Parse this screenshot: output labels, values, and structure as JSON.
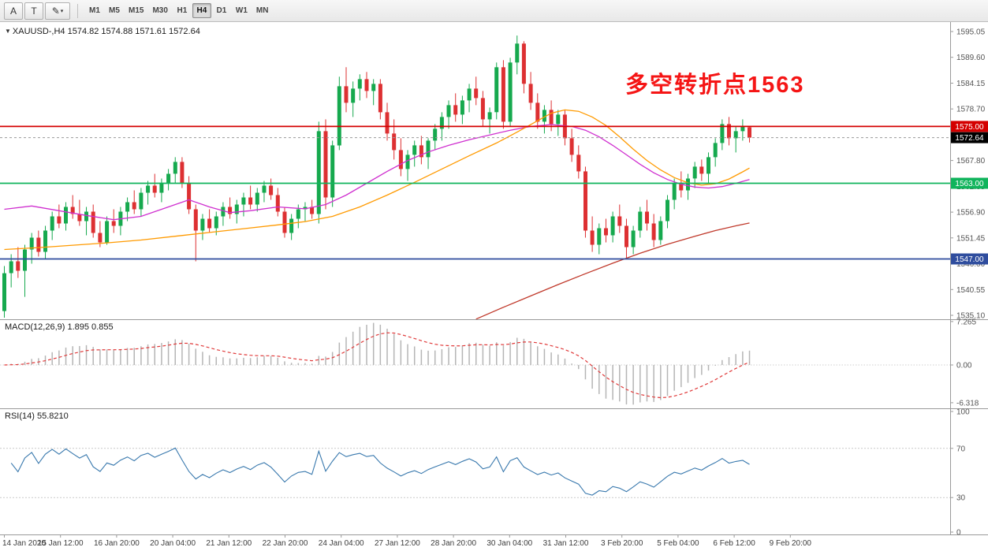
{
  "toolbar": {
    "tool_buttons": [
      {
        "label": "A"
      },
      {
        "label": "T"
      },
      {
        "label": "✎",
        "dropdown": "▾"
      }
    ],
    "timeframes": [
      "M1",
      "M5",
      "M15",
      "M30",
      "H1",
      "H4",
      "D1",
      "W1",
      "MN"
    ],
    "active_timeframe": "H4"
  },
  "chart": {
    "title_marker": "▼",
    "title": "XAUUSD-,H4 1574.82 1574.88 1571.61 1572.64",
    "annotation": "多空转折点1563",
    "current_price_label": "1572.64",
    "price_ticks": [
      "1595.05",
      "1589.60",
      "1584.15",
      "1578.70",
      "1567.80",
      "1562.35",
      "1556.90",
      "1551.45",
      "1546.00",
      "1540.55",
      "1535.10"
    ],
    "macd_title": "MACD(12,26,9) 1.895 0.855",
    "macd_ticks": [
      "7.265",
      "0.00",
      "-6.318"
    ],
    "rsi_title": "RSI(14) 55.8210",
    "rsi_ticks": [
      "100",
      "70",
      "30",
      "0"
    ]
  },
  "colors": {
    "bull": "#16a94e",
    "bear": "#dd3032",
    "macd_hist": "#b5b5b5",
    "macd_signal": "#e03a3a",
    "rsi_line": "#3878ad",
    "separator": "#9a9a9a",
    "axis_text": "#555555",
    "current_price_line": "#999999"
  },
  "chart_data": {
    "type": "candlestick",
    "symbol": "XAUUSD-",
    "timeframe": "H4",
    "last_bar": {
      "open": 1574.82,
      "high": 1574.88,
      "low": 1571.61,
      "close": 1572.64
    },
    "y_range": [
      1535.1,
      1595.05
    ],
    "x_labels": [
      "14 Jan 2020",
      "15 Jan 12:00",
      "16 Jan 20:00",
      "20 Jan 04:00",
      "21 Jan 12:00",
      "22 Jan 20:00",
      "24 Jan 04:00",
      "27 Jan 12:00",
      "28 Jan 20:00",
      "30 Jan 04:00",
      "31 Jan 12:00",
      "3 Feb 20:00",
      "5 Feb 04:00",
      "6 Feb 12:00",
      "9 Feb 20:00"
    ],
    "current_price": 1572.64,
    "levels": [
      {
        "price": 1575.0,
        "label": "1575.00",
        "color": "#d40000"
      },
      {
        "price": 1563.0,
        "label": "1563.00",
        "color": "#10b45c"
      },
      {
        "price": 1547.0,
        "label": "1547.00",
        "color": "#2f4d9e"
      }
    ],
    "candles": [
      [
        1536.0,
        1545.5,
        1534.6,
        1544.0
      ],
      [
        1544.0,
        1548.0,
        1541.0,
        1546.5
      ],
      [
        1546.5,
        1549.5,
        1543.0,
        1544.5
      ],
      [
        1544.5,
        1550.0,
        1539.0,
        1549.0
      ],
      [
        1549.0,
        1552.5,
        1546.0,
        1551.5
      ],
      [
        1551.5,
        1553.0,
        1547.5,
        1548.5
      ],
      [
        1548.5,
        1554.0,
        1547.0,
        1553.0
      ],
      [
        1553.0,
        1557.0,
        1551.0,
        1556.0
      ],
      [
        1556.0,
        1558.5,
        1553.5,
        1554.5
      ],
      [
        1554.5,
        1559.0,
        1553.0,
        1558.0
      ],
      [
        1558.0,
        1560.5,
        1555.5,
        1556.5
      ],
      [
        1556.5,
        1559.5,
        1554.0,
        1555.0
      ],
      [
        1555.0,
        1558.0,
        1552.0,
        1557.0
      ],
      [
        1557.0,
        1558.5,
        1551.5,
        1552.5
      ],
      [
        1552.5,
        1555.0,
        1549.5,
        1550.5
      ],
      [
        1550.5,
        1556.0,
        1550.0,
        1555.0
      ],
      [
        1555.0,
        1557.5,
        1552.5,
        1554.0
      ],
      [
        1554.0,
        1558.0,
        1552.0,
        1557.0
      ],
      [
        1557.0,
        1560.0,
        1555.0,
        1559.0
      ],
      [
        1559.0,
        1561.5,
        1556.5,
        1557.5
      ],
      [
        1557.5,
        1562.0,
        1556.0,
        1561.0
      ],
      [
        1561.0,
        1563.5,
        1558.5,
        1562.5
      ],
      [
        1562.5,
        1565.0,
        1560.0,
        1561.0
      ],
      [
        1561.0,
        1564.0,
        1559.0,
        1563.0
      ],
      [
        1563.0,
        1566.0,
        1561.5,
        1565.0
      ],
      [
        1565.0,
        1568.5,
        1563.0,
        1567.5
      ],
      [
        1567.5,
        1568.5,
        1562.0,
        1563.0
      ],
      [
        1563.0,
        1564.5,
        1556.5,
        1557.5
      ],
      [
        1557.5,
        1558.5,
        1546.5,
        1553.0
      ],
      [
        1553.0,
        1556.5,
        1551.0,
        1555.5
      ],
      [
        1555.5,
        1557.5,
        1552.5,
        1553.5
      ],
      [
        1553.5,
        1557.0,
        1552.0,
        1556.0
      ],
      [
        1556.0,
        1559.0,
        1554.0,
        1558.0
      ],
      [
        1558.0,
        1560.0,
        1555.5,
        1556.5
      ],
      [
        1556.5,
        1559.5,
        1554.5,
        1558.5
      ],
      [
        1558.5,
        1561.0,
        1556.0,
        1560.0
      ],
      [
        1560.0,
        1562.5,
        1557.5,
        1558.5
      ],
      [
        1558.5,
        1562.0,
        1557.0,
        1561.0
      ],
      [
        1561.0,
        1563.5,
        1559.0,
        1562.5
      ],
      [
        1562.5,
        1564.0,
        1559.5,
        1560.5
      ],
      [
        1560.5,
        1562.0,
        1556.0,
        1557.0
      ],
      [
        1557.0,
        1558.0,
        1551.5,
        1552.5
      ],
      [
        1552.5,
        1556.5,
        1551.0,
        1555.5
      ],
      [
        1555.5,
        1558.5,
        1553.5,
        1557.5
      ],
      [
        1557.5,
        1559.0,
        1555.0,
        1558.0
      ],
      [
        1558.0,
        1559.5,
        1555.5,
        1556.5
      ],
      [
        1556.5,
        1576.0,
        1554.5,
        1574.0
      ],
      [
        1574.0,
        1576.5,
        1557.5,
        1560.0
      ],
      [
        1560.0,
        1572.0,
        1558.0,
        1571.0
      ],
      [
        1571.0,
        1585.5,
        1570.0,
        1583.5
      ],
      [
        1583.5,
        1587.5,
        1578.0,
        1580.0
      ],
      [
        1580.0,
        1584.5,
        1577.0,
        1583.0
      ],
      [
        1583.0,
        1586.0,
        1580.5,
        1585.0
      ],
      [
        1585.0,
        1586.5,
        1581.0,
        1582.5
      ],
      [
        1582.5,
        1585.0,
        1579.5,
        1584.0
      ],
      [
        1584.0,
        1585.0,
        1576.5,
        1578.0
      ],
      [
        1578.0,
        1580.0,
        1572.0,
        1573.5
      ],
      [
        1573.5,
        1576.5,
        1568.0,
        1570.0
      ],
      [
        1570.0,
        1572.5,
        1564.5,
        1566.0
      ],
      [
        1566.0,
        1570.0,
        1563.5,
        1569.0
      ],
      [
        1569.0,
        1572.0,
        1566.5,
        1571.0
      ],
      [
        1571.0,
        1573.0,
        1567.0,
        1568.5
      ],
      [
        1568.5,
        1572.5,
        1566.0,
        1572.0
      ],
      [
        1572.0,
        1575.5,
        1570.0,
        1574.5
      ],
      [
        1574.5,
        1578.0,
        1572.0,
        1577.0
      ],
      [
        1577.0,
        1580.5,
        1574.5,
        1579.5
      ],
      [
        1579.5,
        1582.0,
        1576.0,
        1577.5
      ],
      [
        1577.5,
        1581.5,
        1575.5,
        1580.5
      ],
      [
        1580.5,
        1584.0,
        1578.0,
        1583.0
      ],
      [
        1583.0,
        1585.5,
        1579.5,
        1581.0
      ],
      [
        1581.0,
        1582.5,
        1575.0,
        1576.5
      ],
      [
        1576.5,
        1579.0,
        1573.5,
        1578.0
      ],
      [
        1578.0,
        1588.5,
        1576.5,
        1587.5
      ],
      [
        1587.5,
        1589.0,
        1574.5,
        1576.0
      ],
      [
        1576.0,
        1589.5,
        1575.0,
        1588.5
      ],
      [
        1588.5,
        1594.2,
        1586.0,
        1592.5
      ],
      [
        1592.5,
        1593.0,
        1582.0,
        1584.0
      ],
      [
        1584.0,
        1586.5,
        1578.5,
        1580.0
      ],
      [
        1580.0,
        1582.0,
        1574.5,
        1576.0
      ],
      [
        1576.0,
        1579.5,
        1573.5,
        1578.5
      ],
      [
        1578.5,
        1580.5,
        1574.0,
        1575.5
      ],
      [
        1575.5,
        1578.5,
        1573.0,
        1577.5
      ],
      [
        1577.5,
        1578.5,
        1571.0,
        1572.5
      ],
      [
        1572.5,
        1574.5,
        1567.5,
        1569.0
      ],
      [
        1569.0,
        1571.0,
        1564.0,
        1565.5
      ],
      [
        1565.5,
        1566.5,
        1551.5,
        1553.0
      ],
      [
        1553.0,
        1556.0,
        1548.5,
        1550.0
      ],
      [
        1550.0,
        1554.5,
        1548.0,
        1553.5
      ],
      [
        1553.5,
        1555.5,
        1550.5,
        1552.0
      ],
      [
        1552.0,
        1557.0,
        1550.5,
        1556.0
      ],
      [
        1556.0,
        1558.5,
        1552.5,
        1554.0
      ],
      [
        1554.0,
        1555.5,
        1547.2,
        1549.5
      ],
      [
        1549.5,
        1554.0,
        1548.0,
        1553.0
      ],
      [
        1553.0,
        1558.0,
        1551.5,
        1557.0
      ],
      [
        1557.0,
        1559.5,
        1553.0,
        1554.5
      ],
      [
        1554.5,
        1556.5,
        1549.5,
        1551.0
      ],
      [
        1551.0,
        1556.0,
        1550.0,
        1555.0
      ],
      [
        1555.0,
        1560.5,
        1553.5,
        1559.5
      ],
      [
        1559.5,
        1564.0,
        1557.5,
        1563.0
      ],
      [
        1563.0,
        1565.5,
        1560.0,
        1561.5
      ],
      [
        1561.5,
        1565.0,
        1559.5,
        1564.0
      ],
      [
        1564.0,
        1567.5,
        1562.0,
        1566.5
      ],
      [
        1566.5,
        1568.0,
        1563.5,
        1565.0
      ],
      [
        1565.0,
        1569.5,
        1563.0,
        1568.5
      ],
      [
        1568.5,
        1572.5,
        1566.5,
        1571.5
      ],
      [
        1571.5,
        1576.5,
        1570.0,
        1575.5
      ],
      [
        1575.5,
        1577.0,
        1571.0,
        1572.5
      ],
      [
        1572.5,
        1575.0,
        1569.5,
        1574.0
      ],
      [
        1574.0,
        1576.5,
        1572.0,
        1575.0
      ],
      [
        1574.82,
        1574.88,
        1571.61,
        1572.64
      ]
    ],
    "overlays": [
      {
        "name": "ma-fast",
        "color": "#cf2fcf",
        "points": [
          [
            0,
            1557.5
          ],
          [
            4,
            1558.2
          ],
          [
            8,
            1557.2
          ],
          [
            12,
            1556.2
          ],
          [
            16,
            1555.3
          ],
          [
            20,
            1556.0
          ],
          [
            24,
            1558.0
          ],
          [
            27,
            1559.5
          ],
          [
            30,
            1558.0
          ],
          [
            33,
            1556.8
          ],
          [
            36,
            1557.2
          ],
          [
            40,
            1558.0
          ],
          [
            44,
            1557.6
          ],
          [
            47,
            1558.5
          ],
          [
            50,
            1560.5
          ],
          [
            53,
            1563.0
          ],
          [
            56,
            1565.5
          ],
          [
            59,
            1567.8
          ],
          [
            62,
            1569.6
          ],
          [
            65,
            1571.0
          ],
          [
            68,
            1572.2
          ],
          [
            71,
            1573.2
          ],
          [
            74,
            1574.2
          ],
          [
            77,
            1575.0
          ],
          [
            80,
            1575.4
          ],
          [
            83,
            1575.0
          ],
          [
            85,
            1574.2
          ],
          [
            87,
            1572.8
          ],
          [
            89,
            1571.0
          ],
          [
            91,
            1569.0
          ],
          [
            93,
            1567.0
          ],
          [
            95,
            1565.2
          ],
          [
            97,
            1563.8
          ],
          [
            99,
            1562.8
          ],
          [
            101,
            1562.2
          ],
          [
            103,
            1562.0
          ],
          [
            105,
            1562.3
          ],
          [
            107,
            1563.0
          ],
          [
            109,
            1563.8
          ]
        ]
      },
      {
        "name": "ma-slow",
        "color": "#ff9a00",
        "points": [
          [
            0,
            1549.0
          ],
          [
            5,
            1549.4
          ],
          [
            10,
            1549.9
          ],
          [
            15,
            1550.4
          ],
          [
            20,
            1551.0
          ],
          [
            25,
            1551.8
          ],
          [
            30,
            1552.6
          ],
          [
            35,
            1553.4
          ],
          [
            40,
            1554.2
          ],
          [
            44,
            1554.9
          ],
          [
            48,
            1556.0
          ],
          [
            52,
            1558.0
          ],
          [
            56,
            1560.5
          ],
          [
            60,
            1563.2
          ],
          [
            64,
            1566.0
          ],
          [
            68,
            1568.8
          ],
          [
            72,
            1571.5
          ],
          [
            75,
            1573.8
          ],
          [
            78,
            1576.2
          ],
          [
            80,
            1577.8
          ],
          [
            82,
            1578.5
          ],
          [
            84,
            1578.2
          ],
          [
            86,
            1577.0
          ],
          [
            88,
            1575.2
          ],
          [
            90,
            1572.8
          ],
          [
            92,
            1570.2
          ],
          [
            94,
            1567.8
          ],
          [
            96,
            1565.8
          ],
          [
            98,
            1564.2
          ],
          [
            100,
            1563.1
          ],
          [
            102,
            1562.6
          ],
          [
            104,
            1562.9
          ],
          [
            106,
            1563.9
          ],
          [
            108,
            1565.4
          ],
          [
            109,
            1566.2
          ]
        ]
      },
      {
        "name": "ma-long",
        "color": "#c0392b",
        "points": [
          [
            69,
            1534.3
          ],
          [
            73,
            1536.8
          ],
          [
            77,
            1539.2
          ],
          [
            81,
            1541.6
          ],
          [
            85,
            1543.9
          ],
          [
            89,
            1546.1
          ],
          [
            93,
            1548.2
          ],
          [
            97,
            1550.1
          ],
          [
            101,
            1551.8
          ],
          [
            104,
            1553.0
          ],
          [
            107,
            1554.0
          ],
          [
            109,
            1554.6
          ]
        ]
      }
    ],
    "indicators": {
      "macd": {
        "type": "histogram+signal",
        "params": [
          12,
          26,
          9
        ],
        "value": 1.895,
        "signal": 0.855,
        "axis": [
          7.265,
          0.0,
          -6.318
        ]
      },
      "rsi": {
        "type": "line",
        "params": [
          14
        ],
        "value": 55.821,
        "axis": [
          0,
          100
        ],
        "levels": [
          30,
          70
        ]
      }
    }
  }
}
